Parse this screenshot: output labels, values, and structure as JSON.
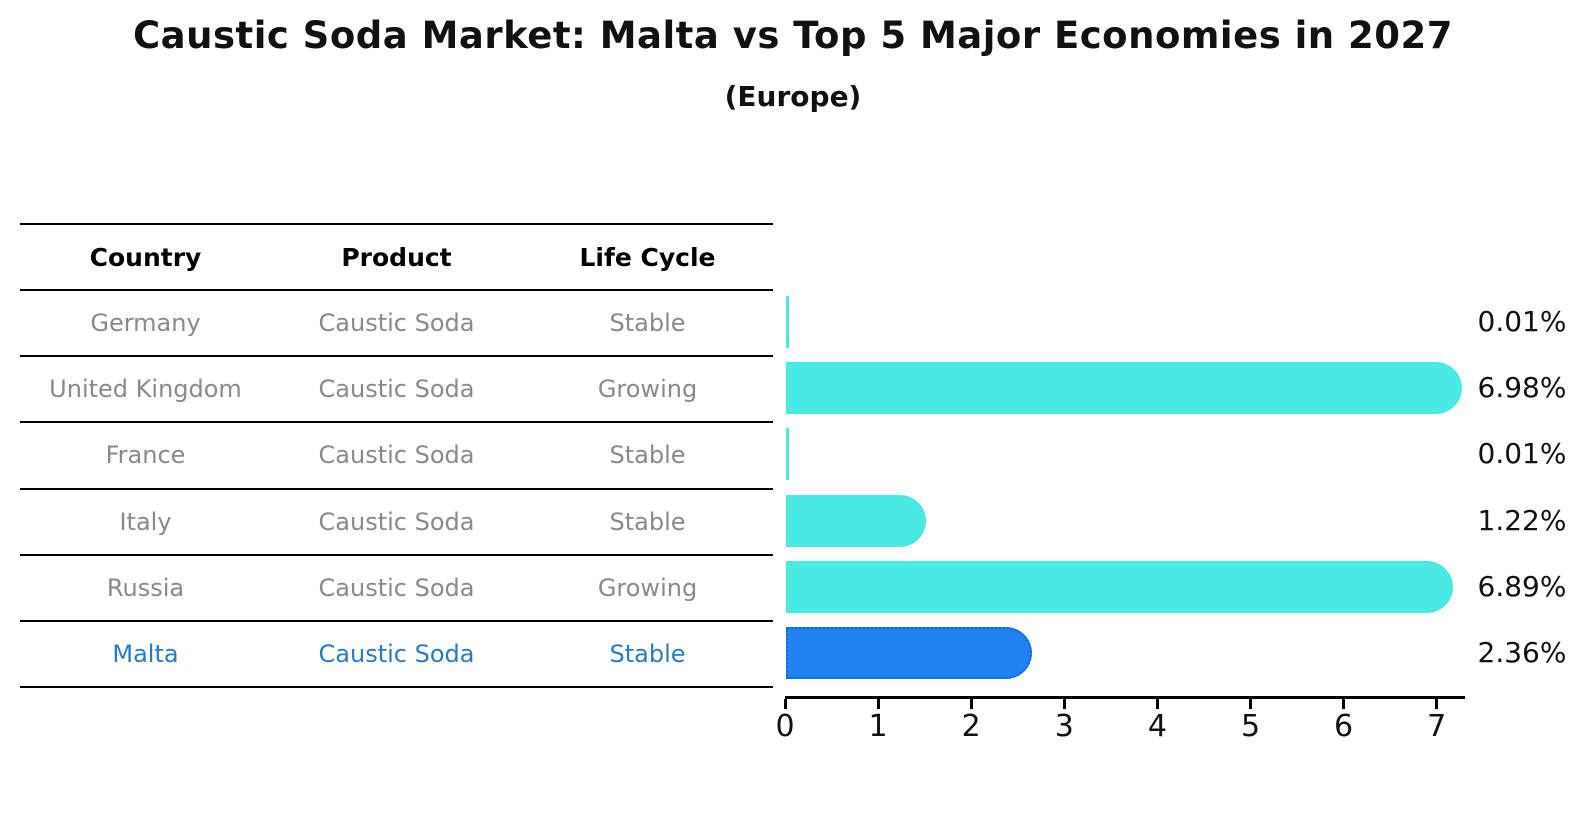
{
  "title": "Caustic Soda Market: Malta vs Top 5 Major Economies in 2027",
  "subtitle": "(Europe)",
  "table": {
    "headers": [
      "Country",
      "Product",
      "Life Cycle"
    ],
    "rows": [
      {
        "country": "Germany",
        "product": "Caustic Soda",
        "life_cycle": "Stable",
        "highlight": false
      },
      {
        "country": "United Kingdom",
        "product": "Caustic Soda",
        "life_cycle": "Growing",
        "highlight": false
      },
      {
        "country": "France",
        "product": "Caustic Soda",
        "life_cycle": "Stable",
        "highlight": false
      },
      {
        "country": "Italy",
        "product": "Caustic Soda",
        "life_cycle": "Stable",
        "highlight": false
      },
      {
        "country": "Russia",
        "product": "Caustic Soda",
        "life_cycle": "Growing",
        "highlight": false
      },
      {
        "country": "Malta",
        "product": "Caustic Soda",
        "life_cycle": "Stable",
        "highlight": true
      }
    ]
  },
  "chart_data": {
    "type": "bar",
    "orientation": "horizontal",
    "title": "Caustic Soda Market: Malta vs Top 5 Major Economies in 2027",
    "subtitle": "(Europe)",
    "categories": [
      "Germany",
      "United Kingdom",
      "France",
      "Italy",
      "Russia",
      "Malta"
    ],
    "values": [
      0.01,
      6.98,
      0.01,
      1.22,
      6.89,
      2.36
    ],
    "value_labels": [
      "0.01%",
      "6.98%",
      "0.01%",
      "1.22%",
      "6.89%",
      "2.36%"
    ],
    "xlabel": "",
    "ylabel": "",
    "xlim": [
      0,
      7.3
    ],
    "x_ticks": [
      0,
      1,
      2,
      3,
      4,
      5,
      6,
      7
    ],
    "grid": false,
    "legend": "none",
    "colors": {
      "bar_default": "#4BE9E4",
      "bar_highlight": "#1E83F0",
      "bar_highlight_border": "#1063D6",
      "highlight_text": "#2B7AC9",
      "table_text": "#8a8a8a",
      "axis_text": "#111111"
    }
  }
}
